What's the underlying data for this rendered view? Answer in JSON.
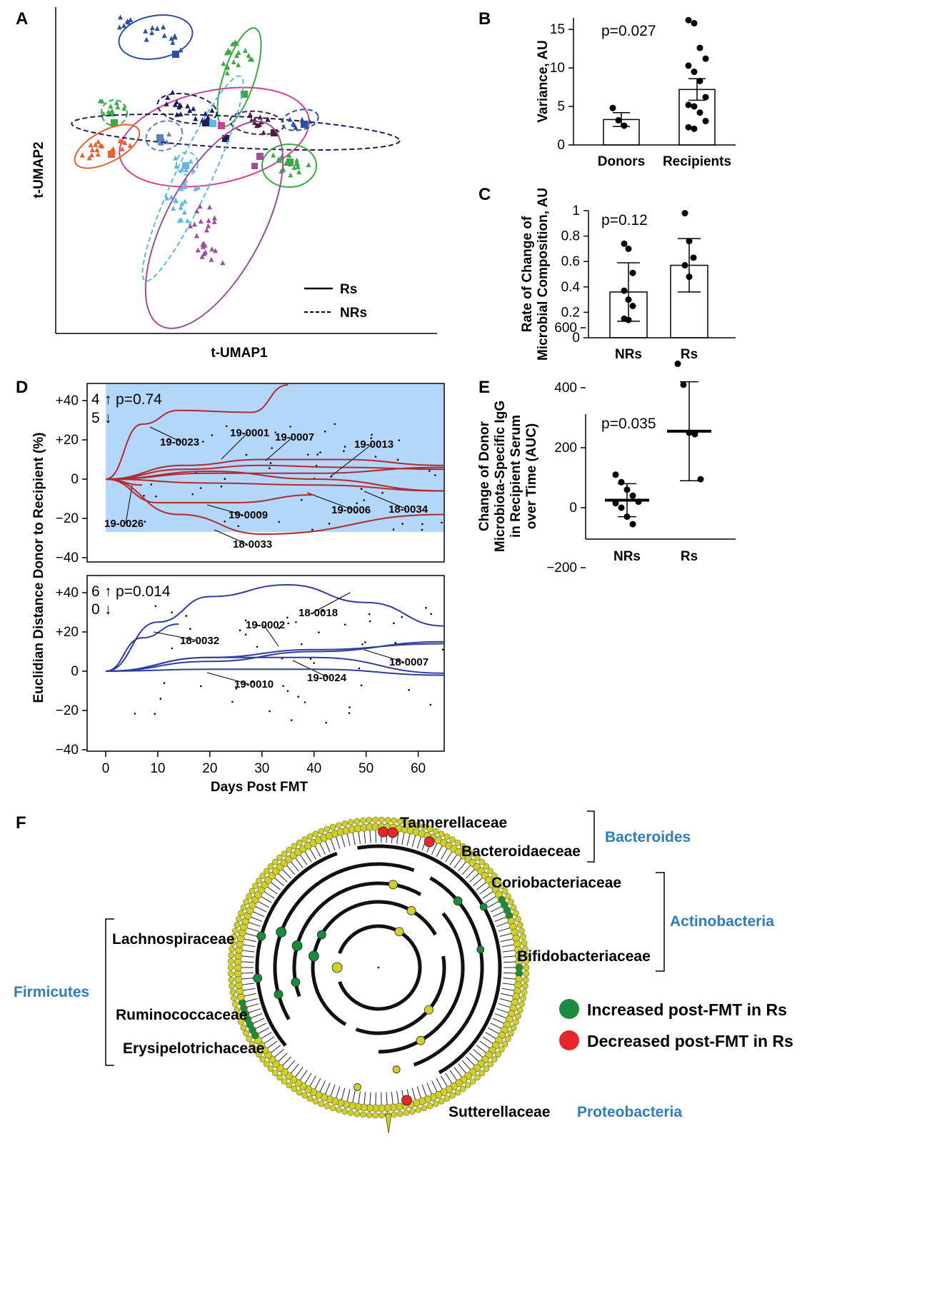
{
  "panels": {
    "A": {
      "label": "A",
      "xlabel": "t-UMAP1",
      "ylabel": "t-UMAP2",
      "legend": [
        {
          "label": "Rs",
          "style": "solid"
        },
        {
          "label": "NRs",
          "style": "dashed"
        }
      ]
    },
    "B": {
      "label": "B",
      "ylabel": "Variance, AU",
      "pvalue": "p=0.027",
      "yticks": [
        "0",
        "5",
        "10",
        "15"
      ]
    },
    "C": {
      "label": "C",
      "ylabel_line1": "Rate of Change of",
      "ylabel_line2": "Microbial Composition, AU",
      "pvalue": "p=0.12",
      "yticks": [
        "0",
        "0.2",
        "0.4",
        "0.6",
        "0.8",
        "1"
      ]
    },
    "D": {
      "label": "D",
      "ylabel": "Euclidian Distance Donor to Recipient (%)",
      "xlabel": "Days Post FMT",
      "xticks": [
        "0",
        "10",
        "20",
        "30",
        "40",
        "50",
        "60"
      ],
      "yticks": [
        "+40",
        "+20",
        "0",
        "−20",
        "−40"
      ],
      "top": {
        "pvalue": "p=0.74",
        "up_count": "4",
        "down_count": "5"
      },
      "bottom": {
        "pvalue": "p=0.014",
        "up_count": "6",
        "down_count": "0"
      }
    },
    "E": {
      "label": "E",
      "ylabel_lines": [
        "Change of Donor",
        "Microbiota-Specific IgG",
        "in Recipient Serum",
        "over Time (AUC)"
      ],
      "pvalue": "p=0.035",
      "yticks": [
        "−200",
        "0",
        "200",
        "400",
        "600"
      ]
    },
    "F": {
      "label": "F",
      "families": {
        "tannerellaceae": "Tannerellaceae",
        "bacteroidaceae": "Bacteroidaeceae",
        "coriobacteriaceae": "Coriobacteriaceae",
        "bifidobacteriaceae": "Bifidobacteriaceae",
        "lachnospiraceae": "Lachnospiraceae",
        "ruminococcaceae": "Ruminococcaceae",
        "erysipelotrichaceae": "Erysipelotrichaceae",
        "sutterellaceae": "Sutterellaceae"
      },
      "phyla": {
        "bacteroides": "Bacteroides",
        "actinobacteria": "Actinobacteria",
        "firmicutes": "Firmicutes",
        "proteobacteria": "Proteobacteria"
      },
      "legend": {
        "increased": "Increased post-FMT in Rs",
        "decreased": "Decreased post-FMT in Rs"
      },
      "colors": {
        "increased": "#1a8a3c",
        "decreased": "#e8262a",
        "node": "#cfcf2e"
      }
    }
  },
  "chart_data": [
    {
      "panel": "A",
      "type": "scatter",
      "xlabel": "t-UMAP1",
      "ylabel": "t-UMAP2",
      "legend_placement": "bottom-right",
      "note": "Triangles = recipient samples, squares = donor; ellipses per pair (solid = Rs, dashed = NRs)"
    },
    {
      "panel": "B",
      "type": "bar",
      "categories": [
        "Donors",
        "Recipients"
      ],
      "values": [
        3.3,
        7.2
      ],
      "errors": [
        0.9,
        1.4
      ],
      "points": [
        [
          4.8,
          3.2,
          2.5
        ],
        [
          16.2,
          15.8,
          12.6,
          11.2,
          10.3,
          9.5,
          8.3,
          6.2,
          5.2,
          5.0,
          4.2,
          3.1,
          2.3,
          2.1
        ]
      ],
      "ylabel": "Variance, AU",
      "ylim": [
        0,
        16.5
      ],
      "annotation": "p=0.027"
    },
    {
      "panel": "C",
      "type": "bar",
      "categories": [
        "NRs",
        "Rs"
      ],
      "values": [
        0.36,
        0.57
      ],
      "errors": [
        0.23,
        0.21
      ],
      "points": [
        [
          0.74,
          0.7,
          0.51,
          0.37,
          0.3,
          0.25,
          0.15,
          0.14
        ],
        [
          0.98,
          0.76,
          0.63,
          0.57,
          0.48
        ]
      ],
      "ylabel": "Rate of Change of Microbial Composition, AU",
      "ylim": [
        0,
        1
      ],
      "annotation": "p=0.12"
    },
    {
      "panel": "D-top",
      "type": "line",
      "xlabel": "Days Post FMT",
      "ylabel": "Euclidian Distance Donor to Recipient (%)",
      "xlim": [
        0,
        65
      ],
      "ylim": [
        -40,
        45
      ],
      "annotation": "p=0.74",
      "up": 4,
      "down": 5,
      "series": [
        {
          "name": "19-0023",
          "x": [
            0,
            7,
            14,
            28,
            35
          ],
          "y": [
            0,
            28,
            35,
            34,
            48
          ]
        },
        {
          "name": "19-0001",
          "x": [
            0,
            15,
            30,
            45,
            65
          ],
          "y": [
            0,
            7,
            10,
            10,
            7
          ]
        },
        {
          "name": "19-0007",
          "x": [
            0,
            15,
            30,
            45,
            65
          ],
          "y": [
            0,
            5,
            7,
            6,
            5
          ]
        },
        {
          "name": "19-0013",
          "x": [
            0,
            20,
            40,
            65
          ],
          "y": [
            0,
            3,
            3,
            6
          ]
        },
        {
          "name": "19-0006",
          "x": [
            0,
            20,
            40,
            65
          ],
          "y": [
            0,
            4,
            0,
            -6
          ]
        },
        {
          "name": "18-0034",
          "x": [
            0,
            20,
            40,
            65
          ],
          "y": [
            0,
            -2,
            -3,
            -6
          ]
        },
        {
          "name": "19-0026",
          "x": [
            0,
            7
          ],
          "y": [
            0,
            -3
          ]
        },
        {
          "name": "19-0009",
          "x": [
            0,
            10,
            25,
            40
          ],
          "y": [
            0,
            -12,
            -12,
            -8
          ]
        },
        {
          "name": "18-0033",
          "x": [
            0,
            14,
            30,
            65
          ],
          "y": [
            0,
            -18,
            -28,
            -18
          ]
        }
      ]
    },
    {
      "panel": "D-bottom",
      "type": "line",
      "xlabel": "Days Post FMT",
      "ylabel": "Euclidian Distance Donor to Recipient (%)",
      "xlim": [
        0,
        65
      ],
      "ylim": [
        -40,
        45
      ],
      "annotation": "p=0.014",
      "up": 6,
      "down": 0,
      "series": [
        {
          "name": "18-0018",
          "x": [
            0,
            10,
            20,
            35,
            50,
            65
          ],
          "y": [
            0,
            25,
            38,
            44,
            35,
            23
          ]
        },
        {
          "name": "18-0032",
          "x": [
            0,
            7,
            14
          ],
          "y": [
            0,
            17,
            24
          ]
        },
        {
          "name": "19-0002",
          "x": [
            0,
            20,
            40,
            65
          ],
          "y": [
            0,
            7,
            11,
            14
          ]
        },
        {
          "name": "18-0007",
          "x": [
            0,
            20,
            40,
            65
          ],
          "y": [
            0,
            5,
            10,
            15
          ]
        },
        {
          "name": "19-0024",
          "x": [
            0,
            20,
            40,
            65
          ],
          "y": [
            0,
            7,
            7,
            -1
          ]
        },
        {
          "name": "19-0010",
          "x": [
            0,
            20,
            40,
            65
          ],
          "y": [
            0,
            1,
            1,
            -2
          ]
        }
      ]
    },
    {
      "panel": "E",
      "type": "scatter",
      "categories": [
        "NRs",
        "Rs"
      ],
      "means": [
        25,
        255
      ],
      "errors": [
        55,
        165
      ],
      "points": [
        [
          110,
          85,
          60,
          40,
          20,
          15,
          0,
          -30,
          -55
        ],
        [
          480,
          410,
          250,
          245,
          95
        ]
      ],
      "ylabel": "Change of Donor Microbiota-Specific IgG in Recipient Serum over Time (AUC)",
      "ylim": [
        -200,
        600
      ],
      "annotation": "p=0.035"
    },
    {
      "panel": "F",
      "type": "cladogram",
      "increased_families": [
        "Coriobacteriaceae",
        "Bifidobacteriaceae",
        "Lachnospiraceae",
        "Ruminococcaceae",
        "Erysipelotrichaceae"
      ],
      "decreased_families": [
        "Tannerellaceae",
        "Bacteroidaeceae",
        "Sutterellaceae"
      ]
    }
  ]
}
